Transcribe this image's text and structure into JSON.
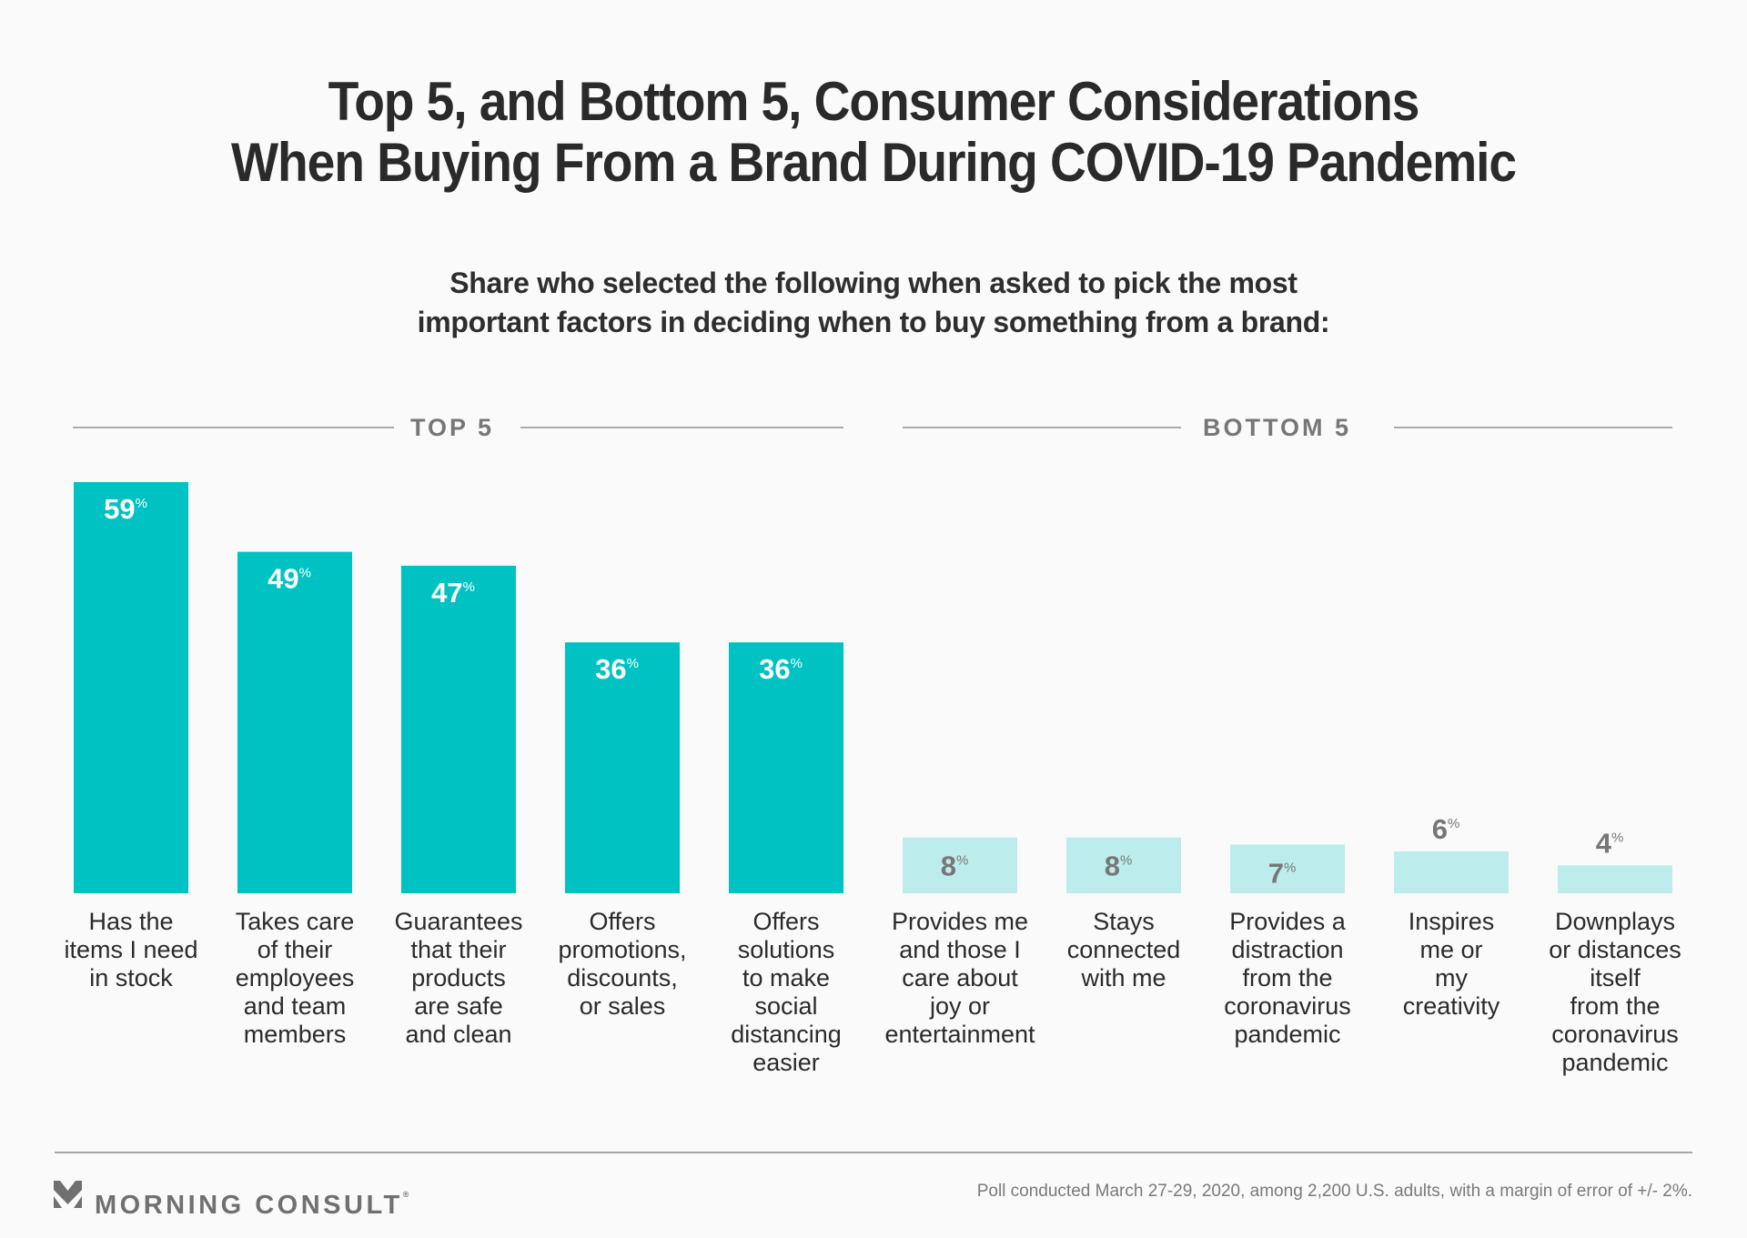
{
  "title": {
    "line1": "Top 5, and Bottom 5, Consumer Considerations",
    "line2": "When Buying From a Brand During COVID-19 Pandemic"
  },
  "subtitle": {
    "line1": "Share who selected the following when asked to pick the most",
    "line2": "important factors in deciding when to buy something from a brand:"
  },
  "sections": {
    "top": "TOP 5",
    "bottom": "BOTTOM 5"
  },
  "colors": {
    "top_bar": "#00C2C2",
    "bottom_bar": "#BCEDEC",
    "top_value_text": "#FFFFFF",
    "bottom_value_text": "#777777"
  },
  "chart_data": {
    "type": "bar",
    "title": "Top 5, and Bottom 5, Consumer Considerations When Buying From a Brand During COVID-19 Pandemic",
    "xlabel": "",
    "ylabel": "Share who selected",
    "unit": "%",
    "ylim": [
      0,
      59
    ],
    "grid": false,
    "groups": [
      {
        "name": "TOP 5",
        "categories": [
          "Has the\nitems I need\nin stock",
          "Takes care\nof their\nemployees\nand team\nmembers",
          "Guarantees\nthat their\nproducts\nare safe\nand clean",
          "Offers\npromotions,\ndiscounts,\nor sales",
          "Offers\nsolutions\nto make\nsocial\ndistancing\neasier"
        ],
        "values": [
          59,
          49,
          47,
          36,
          36
        ]
      },
      {
        "name": "BOTTOM 5",
        "categories": [
          "Provides me\nand those I\ncare about\njoy or\nentertainment",
          "Stays\nconnected\nwith me",
          "Provides a\ndistraction\nfrom the\ncoronavirus\npandemic",
          "Inspires\nme or\nmy\ncreativity",
          "Downplays\nor distances\nitself\nfrom the\ncoronavirus\npandemic"
        ],
        "values": [
          8,
          8,
          7,
          6,
          4
        ]
      }
    ]
  },
  "footer": {
    "brand": "MORNING CONSULT",
    "registered": "®",
    "source": "Poll conducted March 27-29, 2020, among 2,200 U.S. adults, with a margin of error of +/- 2%."
  }
}
